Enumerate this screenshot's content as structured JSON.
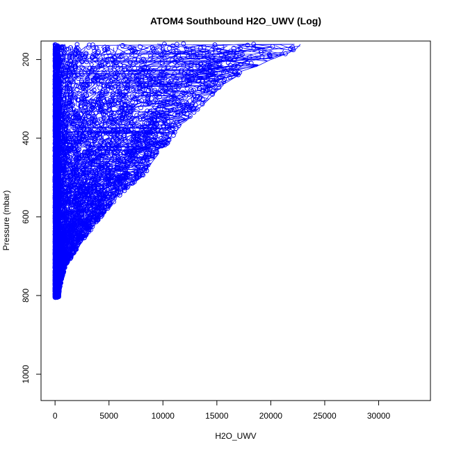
{
  "chart_data": {
    "type": "scatter",
    "title": "ATOM4 Southbound H2O_UWV (Log)",
    "xlabel": "H2O_UWV",
    "ylabel": "Pressure (mbar)",
    "xlim": [
      -1300,
      34800
    ],
    "ylim": [
      1067,
      153
    ],
    "y_reversed": true,
    "x_ticks": [
      0,
      5000,
      10000,
      15000,
      20000,
      25000,
      30000
    ],
    "x_tick_labels": [
      "0",
      "5000",
      "10000",
      "15000",
      "20000",
      "25000",
      "30000"
    ],
    "y_ticks": [
      200,
      400,
      600,
      800,
      1000
    ],
    "y_tick_labels": [
      "200",
      "400",
      "600",
      "800",
      "1000"
    ],
    "grid": false,
    "legend": "none",
    "marker": "open-circle",
    "connected_lines": true,
    "series_color": "#0000ff",
    "envelope": {
      "pressure": [
        805,
        780,
        760,
        740,
        720,
        700,
        680,
        660,
        640,
        620,
        600,
        580,
        560,
        540,
        520,
        500,
        480,
        460,
        440,
        420,
        400,
        380,
        360,
        340,
        320,
        300,
        280,
        260,
        240,
        220,
        200,
        180,
        160
      ],
      "max_h2o": [
        300,
        450,
        600,
        800,
        1000,
        1700,
        2100,
        2600,
        3100,
        3700,
        4300,
        4900,
        5500,
        6200,
        7000,
        8000,
        8600,
        9000,
        9600,
        10300,
        10800,
        11300,
        12000,
        12800,
        13500,
        14300,
        15000,
        15800,
        17000,
        18500,
        20000,
        22000,
        23000
      ]
    }
  }
}
